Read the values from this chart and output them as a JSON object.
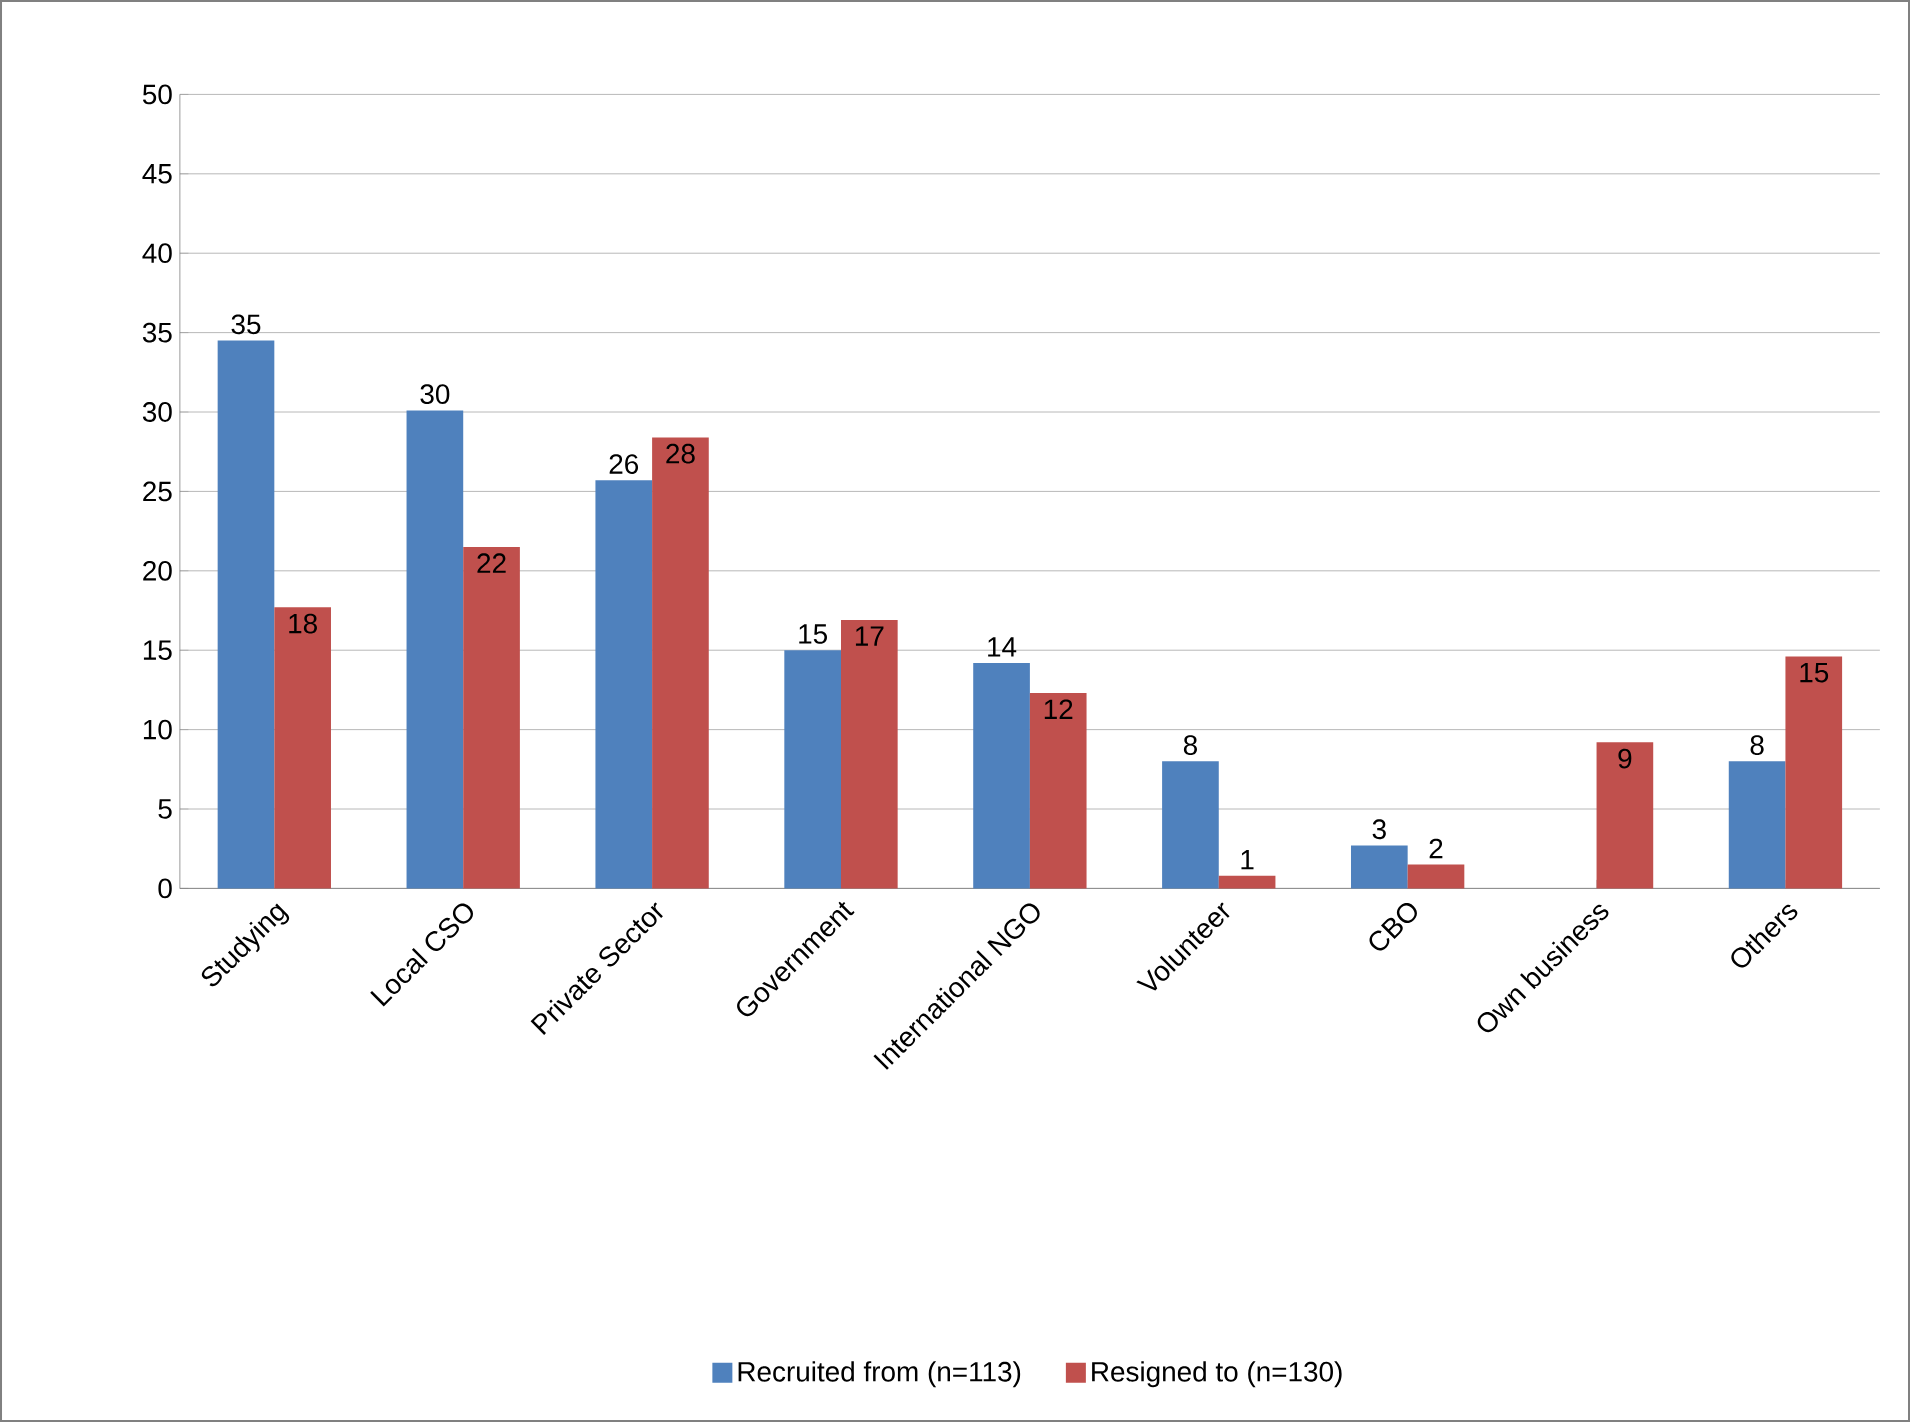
{
  "chart_data": {
    "type": "bar",
    "categories": [
      "Studying",
      "Local CSO",
      "Private Sector",
      "Government",
      "International NGO",
      "Volunteer",
      "CBO",
      "Own business",
      "Others"
    ],
    "series": [
      {
        "name": "Recruited from (n=113)",
        "color": "#4f81bd",
        "values": [
          34.5,
          30.1,
          25.7,
          15.0,
          14.2,
          8.0,
          2.7,
          null,
          8.0
        ],
        "value_labels": [
          "35",
          "30",
          "26",
          "15",
          "14",
          "8",
          "3",
          null,
          "8"
        ]
      },
      {
        "name": "Resigned to (n=130)",
        "color": "#c0504d",
        "values": [
          17.7,
          21.5,
          28.4,
          16.9,
          12.3,
          0.8,
          1.5,
          9.2,
          14.6
        ],
        "value_labels": [
          "18",
          "22",
          "28",
          "17",
          "12",
          "1",
          "2",
          "9",
          "15"
        ]
      }
    ],
    "ylim": [
      0,
      50
    ],
    "yticks": [
      0,
      5,
      10,
      15,
      20,
      25,
      30,
      35,
      40,
      45,
      50
    ],
    "grid": "y",
    "legend": "bottom"
  }
}
